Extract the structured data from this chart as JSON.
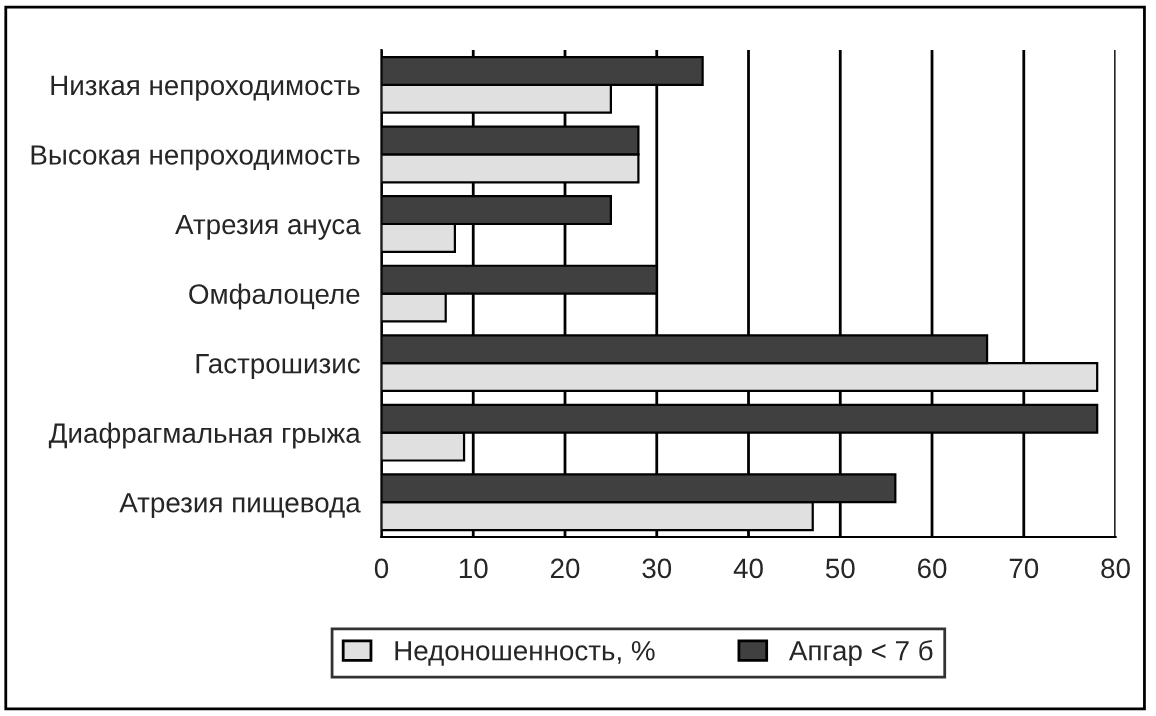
{
  "chart_data": {
    "type": "bar",
    "orientation": "horizontal",
    "categories": [
      "Низкая непроходимость",
      "Высокая непроходимость",
      "Атрезия ануса",
      "Омфалоцеле",
      "Гастрошизис",
      "Диафрагмальная грыжа",
      "Атрезия пищевода"
    ],
    "series": [
      {
        "name": "Недоношенность, %",
        "color": "#e0e0e0",
        "values": [
          25,
          28,
          8,
          7,
          78,
          9,
          47
        ]
      },
      {
        "name": "Апгар < 7 б",
        "color": "#404040",
        "values": [
          35,
          28,
          25,
          30,
          66,
          78,
          56
        ]
      }
    ],
    "xlim": [
      0,
      80
    ],
    "xticks": [
      0,
      10,
      20,
      30,
      40,
      50,
      60,
      70,
      80
    ],
    "grid": "x",
    "legend": "bottom"
  }
}
